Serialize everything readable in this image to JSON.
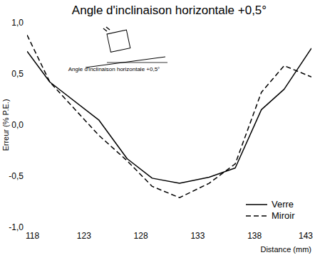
{
  "chart_data": {
    "type": "line",
    "title": "Angle d'inclinaison horizontale +0,5°",
    "x_label": "Distance (mm)",
    "y_label": "Erreur (% P.E.)",
    "annotations": [
      "Angle d'inclinaison horizontale +0,5°"
    ],
    "x": [
      118,
      120,
      124.3,
      126.8,
      129,
      131.4,
      134,
      136.3,
      138.6,
      140.6,
      143
    ],
    "series": [
      {
        "name": "Verre",
        "color": "#000000",
        "line_style": "solid",
        "values": [
          0.72,
          0.42,
          0.05,
          -0.33,
          -0.52,
          -0.57,
          -0.51,
          -0.42,
          0.15,
          0.35,
          0.75
        ]
      },
      {
        "name": "Miroir",
        "color": "#000000",
        "line_style": "dashed",
        "values": [
          0.88,
          0.42,
          -0.1,
          -0.35,
          -0.6,
          -0.71,
          -0.57,
          -0.38,
          0.32,
          0.58,
          0.47
        ]
      }
    ],
    "xlim": [
      118,
      143
    ],
    "xticks": [
      118,
      123,
      128,
      133,
      138,
      143
    ],
    "ylim": [
      -1,
      1
    ],
    "yticks": [
      {
        "value": -1,
        "label": "-1,0"
      },
      {
        "value": -0.5,
        "label": "-0,5"
      },
      {
        "value": 0,
        "label": "0,0"
      },
      {
        "value": 0.5,
        "label": "0,5"
      },
      {
        "value": 1,
        "label": "1,0"
      }
    ],
    "grid": true,
    "legend": "lower right"
  }
}
